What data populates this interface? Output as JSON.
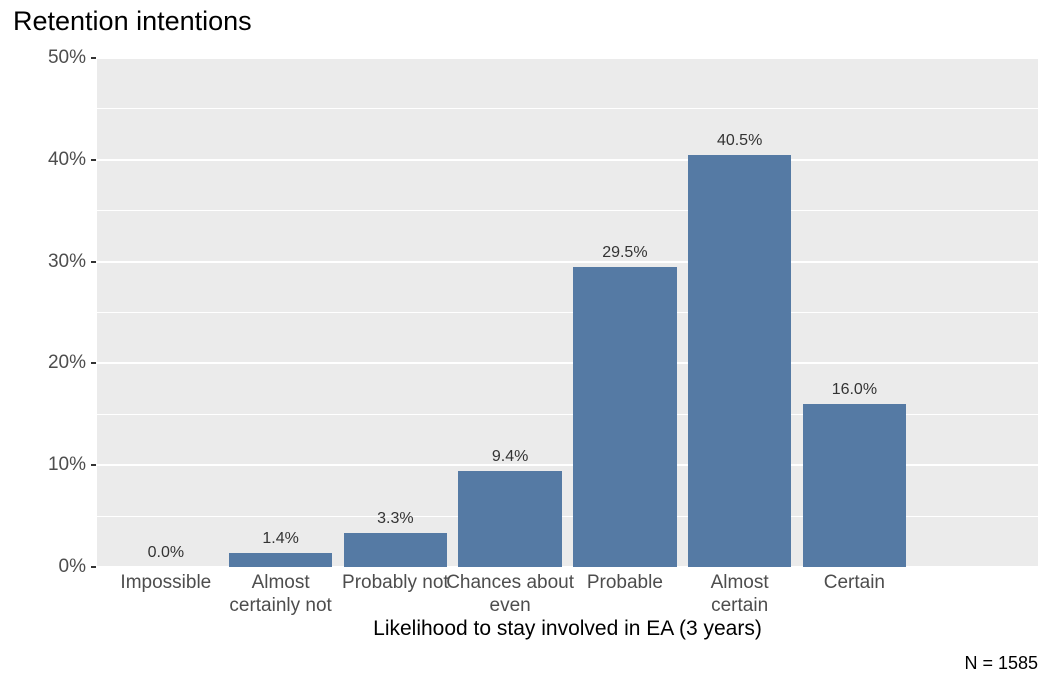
{
  "page": {
    "title": "Retention intentions",
    "footnote": "N = 1585"
  },
  "chart_data": {
    "type": "bar",
    "title": "Retention intentions",
    "xlabel": "Likelihood to stay involved in EA (3 years)",
    "ylabel": "",
    "categories": [
      "Impossible",
      "Almost certainly not",
      "Probably not",
      "Chances about even",
      "Probable",
      "Almost certain",
      "Certain"
    ],
    "category_display_lines": [
      [
        "Impossible"
      ],
      [
        "Almost",
        "certainly not"
      ],
      [
        "Probably not"
      ],
      [
        "Chances about",
        "even"
      ],
      [
        "Probable"
      ],
      [
        "Almost",
        "certain"
      ],
      [
        "Certain"
      ]
    ],
    "values": [
      0.0,
      1.4,
      3.3,
      9.4,
      29.5,
      40.5,
      16.0
    ],
    "value_labels": [
      "0.0%",
      "1.4%",
      "3.3%",
      "9.4%",
      "29.5%",
      "40.5%",
      "16.0%"
    ],
    "ylim": [
      0,
      50
    ],
    "yticks": [
      0,
      10,
      20,
      30,
      40,
      50
    ],
    "ytick_labels": [
      "0%",
      "10%",
      "20%",
      "30%",
      "40%",
      "50%"
    ],
    "minor_yticks": [
      5,
      15,
      25,
      35,
      45
    ],
    "grid": true,
    "legend": false,
    "annotation": "N = 1585",
    "colors": {
      "bar": "#557AA4",
      "panel_background": "#EBEBEB",
      "gridline": "#FFFFFF",
      "axis_text": "#4D4D4D",
      "value_label_text": "#333333",
      "title_text": "#000000"
    }
  }
}
